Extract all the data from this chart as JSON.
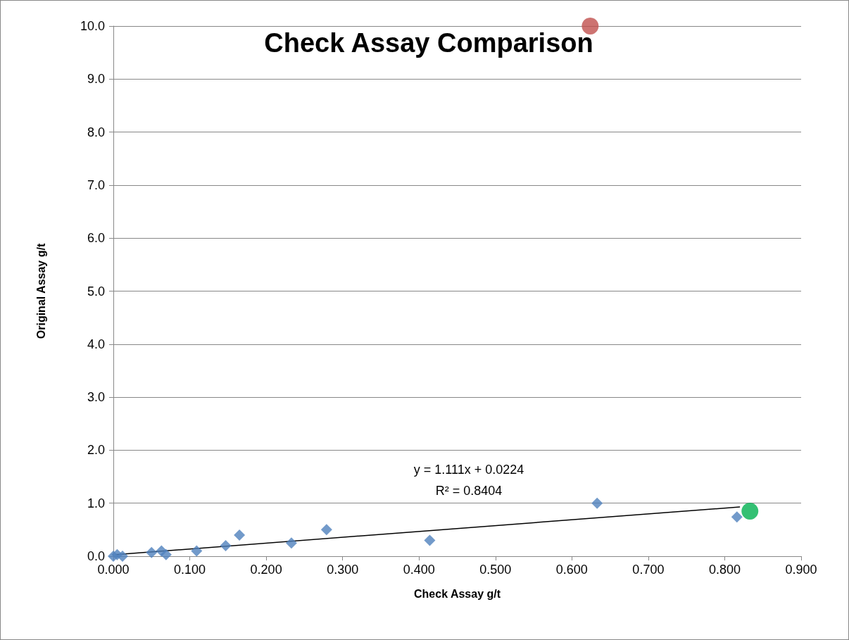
{
  "chart_data": {
    "type": "scatter",
    "title": "Check Assay Comparison",
    "xlabel": "Check Assay g/t",
    "ylabel": "Original Assay g/t",
    "annotations": [
      "y = 1.111x + 0.0224",
      "R² = 0.8404"
    ],
    "x": [
      0,
      0.005,
      0.012,
      0.05,
      0.063,
      0.069,
      0.109,
      0.147,
      0.165,
      0.233,
      0.279,
      0.414,
      0.633,
      0.816
    ],
    "series": [
      {
        "color": "#4f81bd",
        "marker": "diamond",
        "values": [
          0,
          0.03,
          0,
          0.07,
          0.1,
          0.03,
          0.1,
          0.2,
          0.4,
          0.25,
          0.5,
          0.3,
          1.0,
          0.74
        ]
      },
      {
        "color": "#c0504d",
        "marker": "circle",
        "x": [
          0.624
        ],
        "values": [
          10.0
        ]
      },
      {
        "color": "#00b050",
        "marker": "circle",
        "x": [
          0.833
        ],
        "values": [
          0.85
        ]
      },
      {
        "type": "line",
        "color": "#000000",
        "marker": "none",
        "x": [
          0.003,
          0.82
        ],
        "values": [
          0.03,
          0.93
        ]
      }
    ],
    "xlim": [
      0,
      0.9
    ],
    "xticks": [
      {
        "value": 0,
        "label": "0.000"
      },
      {
        "value": 0.1,
        "label": "0.100"
      },
      {
        "value": 0.2,
        "label": "0.200"
      },
      {
        "value": 0.3,
        "label": "0.300"
      },
      {
        "value": 0.4,
        "label": "0.400"
      },
      {
        "value": 0.5,
        "label": "0.500"
      },
      {
        "value": 0.6,
        "label": "0.600"
      },
      {
        "value": 0.7,
        "label": "0.700"
      },
      {
        "value": 0.8,
        "label": "0.800"
      },
      {
        "value": 0.9,
        "label": "0.900"
      }
    ],
    "ylim": [
      0,
      10
    ],
    "yticks": [
      {
        "value": 0,
        "label": "0.0"
      },
      {
        "value": 1,
        "label": "1.0"
      },
      {
        "value": 2,
        "label": "2.0"
      },
      {
        "value": 3,
        "label": "3.0"
      },
      {
        "value": 4,
        "label": "4.0"
      },
      {
        "value": 5,
        "label": "5.0"
      },
      {
        "value": 6,
        "label": "6.0"
      },
      {
        "value": 7,
        "label": "7.0"
      },
      {
        "value": 8,
        "label": "8.0"
      },
      {
        "value": 9,
        "label": "9.0"
      },
      {
        "value": 10,
        "label": "10.0"
      }
    ],
    "grid": "y"
  }
}
